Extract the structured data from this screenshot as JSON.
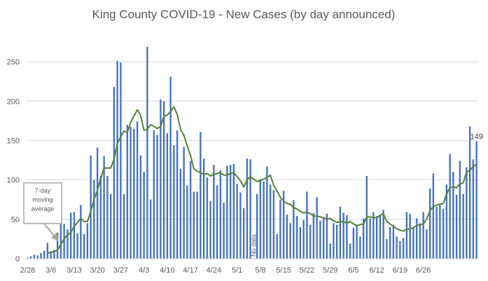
{
  "chart_data": {
    "type": "bar",
    "title": "King County COVID-19 - New Cases (by day announced)",
    "xlabel": "",
    "ylabel": "",
    "ylim": [
      0,
      275
    ],
    "yticks": [
      0,
      50,
      100,
      150,
      200,
      250
    ],
    "grid": "horizontal",
    "x_tick_labels": [
      "2/28",
      "3/6",
      "3/13",
      "3/20",
      "3/27",
      "4/3",
      "4/10",
      "4/17",
      "4/24",
      "5/1",
      "5/8",
      "5/15",
      "5/22",
      "5/29",
      "6/5",
      "6/12",
      "6/19",
      "6/26"
    ],
    "series": [
      {
        "name": "New cases",
        "color": "#4472C4",
        "values": [
          1,
          3,
          5,
          4,
          7,
          10,
          20,
          9,
          11,
          33,
          74,
          44,
          37,
          58,
          59,
          32,
          68,
          31,
          45,
          131,
          100,
          141,
          105,
          130,
          105,
          82,
          218,
          251,
          249,
          82,
          170,
          167,
          165,
          174,
          131,
          110,
          269,
          75,
          163,
          157,
          202,
          200,
          159,
          231,
          144,
          163,
          114,
          142,
          93,
          124,
          85,
          85,
          161,
          127,
          103,
          73,
          119,
          93,
          112,
          71,
          118,
          119,
          120,
          95,
          84,
          64,
          127,
          126,
          0,
          82,
          101,
          98,
          117,
          94,
          87,
          31,
          75,
          86,
          56,
          45,
          74,
          54,
          40,
          49,
          85,
          43,
          58,
          78,
          48,
          51,
          57,
          19,
          45,
          43,
          66,
          58,
          55,
          19,
          39,
          42,
          28,
          51,
          105,
          51,
          59,
          54,
          55,
          62,
          25,
          40,
          43,
          28,
          22,
          26,
          59,
          57,
          39,
          51,
          45,
          59,
          37,
          89,
          108,
          66,
          68,
          63,
          94,
          133,
          110,
          81,
          124,
          82,
          116,
          168,
          126,
          149
        ]
      },
      {
        "name": "7-day moving average",
        "type": "line",
        "color": "#548235",
        "values": [
          null,
          null,
          null,
          null,
          null,
          null,
          7,
          8,
          9,
          11,
          18,
          25,
          30,
          33,
          41,
          46,
          51,
          47,
          47,
          60,
          75,
          87,
          102,
          115,
          115,
          115,
          126,
          146,
          155,
          162,
          160,
          173,
          181,
          189,
          182,
          163,
          164,
          170,
          168,
          165,
          168,
          181,
          182,
          187,
          193,
          183,
          164,
          157,
          143,
          131,
          114,
          111,
          109,
          107,
          108,
          105,
          107,
          108,
          109,
          106,
          106,
          108,
          109,
          104,
          99,
          91,
          100,
          104,
          101,
          98,
          99,
          101,
          103,
          106,
          93,
          86,
          78,
          73,
          70,
          69,
          65,
          63,
          60,
          58,
          59,
          57,
          54,
          54,
          53,
          52,
          50,
          51,
          48,
          46,
          47,
          47,
          45,
          47,
          44,
          42,
          43,
          44,
          53,
          53,
          52,
          52,
          55,
          57,
          47,
          44,
          41,
          38,
          36,
          35,
          37,
          38,
          39,
          42,
          43,
          44,
          50,
          61,
          66,
          68,
          69,
          70,
          82,
          90,
          91,
          90,
          95,
          96,
          110,
          112,
          117,
          120
        ]
      }
    ],
    "annotations": {
      "moving_average_box": [
        "7-day",
        "moving",
        "average"
      ],
      "no_data": "No data",
      "last_value": "149"
    }
  }
}
